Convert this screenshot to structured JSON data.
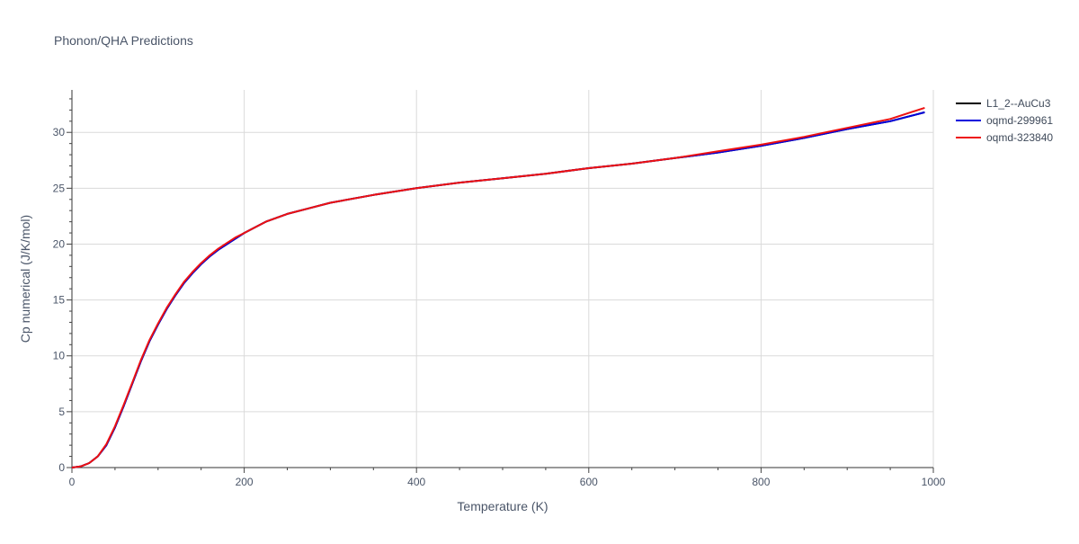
{
  "chart_data": {
    "type": "line",
    "title": "Phonon/QHA Predictions",
    "xlabel": "Temperature (K)",
    "ylabel": "Cp numerical (J/K/mol)",
    "xlim": [
      0,
      1000
    ],
    "ylim": [
      0,
      33.8
    ],
    "xticks": [
      0,
      200,
      400,
      600,
      800,
      1000
    ],
    "yticks": [
      0,
      5,
      10,
      15,
      20,
      25,
      30
    ],
    "grid": true,
    "legend_position": "top-right",
    "series": [
      {
        "name": "L1_2--AuCu3",
        "color": "#000000",
        "x": [
          0,
          10,
          20,
          30,
          40,
          50,
          60,
          70,
          80,
          90,
          100,
          110,
          120,
          130,
          140,
          150,
          160,
          170,
          180,
          190,
          200,
          225,
          250,
          275,
          300,
          350,
          400,
          450,
          500,
          550,
          600,
          650,
          700,
          750,
          800,
          850,
          900,
          950,
          990
        ],
        "y": [
          0,
          0.1,
          0.4,
          1.0,
          2.0,
          3.6,
          5.5,
          7.5,
          9.5,
          11.3,
          12.8,
          14.2,
          15.4,
          16.5,
          17.4,
          18.2,
          18.9,
          19.5,
          20.0,
          20.5,
          21.0,
          22.0,
          22.7,
          23.2,
          23.7,
          24.4,
          25.0,
          25.5,
          25.9,
          26.3,
          26.8,
          27.2,
          27.7,
          28.2,
          28.8,
          29.5,
          30.3,
          31.0,
          31.8
        ]
      },
      {
        "name": "oqmd-299961",
        "color": "#0000dd",
        "x": [
          0,
          10,
          20,
          30,
          40,
          50,
          60,
          70,
          80,
          90,
          100,
          110,
          120,
          130,
          140,
          150,
          160,
          170,
          180,
          190,
          200,
          225,
          250,
          275,
          300,
          350,
          400,
          450,
          500,
          550,
          600,
          650,
          700,
          750,
          800,
          850,
          900,
          950,
          990
        ],
        "y": [
          0,
          0.1,
          0.4,
          1.0,
          2.0,
          3.6,
          5.5,
          7.5,
          9.5,
          11.3,
          12.8,
          14.2,
          15.4,
          16.5,
          17.4,
          18.2,
          18.9,
          19.5,
          20.0,
          20.5,
          21.0,
          22.0,
          22.7,
          23.2,
          23.7,
          24.4,
          25.0,
          25.5,
          25.9,
          26.3,
          26.8,
          27.2,
          27.7,
          28.2,
          28.8,
          29.5,
          30.3,
          31.0,
          31.8
        ]
      },
      {
        "name": "oqmd-323840",
        "color": "#ee1111",
        "x": [
          0,
          10,
          20,
          30,
          40,
          50,
          60,
          70,
          80,
          90,
          100,
          110,
          120,
          130,
          140,
          150,
          160,
          170,
          180,
          190,
          200,
          225,
          250,
          275,
          300,
          350,
          400,
          450,
          500,
          550,
          600,
          650,
          700,
          750,
          800,
          850,
          900,
          950,
          990
        ],
        "y": [
          0,
          0.1,
          0.4,
          1.0,
          2.1,
          3.7,
          5.6,
          7.6,
          9.6,
          11.4,
          12.9,
          14.3,
          15.5,
          16.6,
          17.5,
          18.3,
          19.0,
          19.6,
          20.1,
          20.6,
          21.0,
          22.0,
          22.7,
          23.2,
          23.7,
          24.4,
          25.0,
          25.5,
          25.9,
          26.3,
          26.8,
          27.2,
          27.7,
          28.3,
          28.9,
          29.6,
          30.4,
          31.2,
          32.2
        ]
      }
    ]
  }
}
